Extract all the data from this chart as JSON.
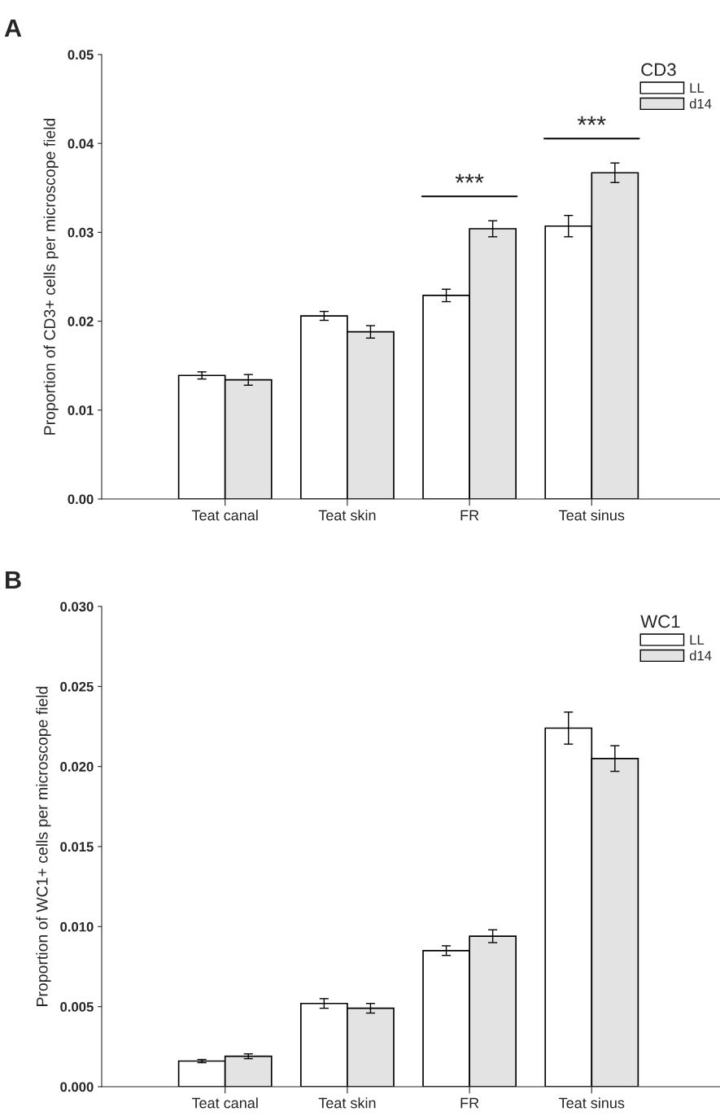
{
  "chart_data": [
    {
      "type": "bar",
      "title": "A",
      "ylabel": "Proportion of CD3+ cells per microscope field",
      "legend_title": "CD3",
      "legend": "top right",
      "categories": [
        "Teat canal",
        "Teat skin",
        "FR",
        "Teat sinus"
      ],
      "series": [
        {
          "name": "LL",
          "color": "#ffffff",
          "values": [
            0.0139,
            0.0206,
            0.0229,
            0.0307
          ],
          "errors": [
            0.0004,
            0.0005,
            0.0007,
            0.0012
          ]
        },
        {
          "name": "d14",
          "color": "#e3e3e3",
          "values": [
            0.0134,
            0.0188,
            0.0304,
            0.0367
          ],
          "errors": [
            0.0006,
            0.0007,
            0.0009,
            0.0011
          ]
        }
      ],
      "ylim": [
        0,
        0.05
      ],
      "yticks": [
        {
          "value": 0,
          "label": "0.00"
        },
        0.01,
        0.02,
        0.03,
        0.04,
        0.05
      ],
      "annotations": [
        "***",
        "***"
      ]
    },
    {
      "type": "bar",
      "title": "B",
      "ylabel": "Proportion of WC1+ cells per microscope field",
      "legend_title": "WC1",
      "legend": "top right",
      "categories": [
        "Teat canal",
        "Teat skin",
        "FR",
        "Teat sinus"
      ],
      "series": [
        {
          "name": "LL",
          "color": "#ffffff",
          "values": [
            0.0016,
            0.0052,
            0.0085,
            0.0224
          ],
          "errors": [
            0.0001,
            0.0003,
            0.0003,
            0.001
          ]
        },
        {
          "name": "d14",
          "color": "#e3e3e3",
          "values": [
            0.0019,
            0.0049,
            0.0094,
            0.0205
          ],
          "errors": [
            0.00015,
            0.0003,
            0.0004,
            0.0008
          ]
        }
      ],
      "ylim": [
        0,
        0.03
      ],
      "yticks": [
        {
          "value": 0,
          "label": "0.000"
        },
        {
          "value": 0.005,
          "label": "0.005"
        },
        {
          "value": 0.01,
          "label": "0.010"
        },
        {
          "value": 0.015,
          "label": "0.015"
        },
        {
          "value": 0.02,
          "label": "0.020"
        },
        {
          "value": 0.025,
          "label": "0.025"
        },
        {
          "value": 0.03,
          "label": "0.030"
        }
      ]
    }
  ]
}
